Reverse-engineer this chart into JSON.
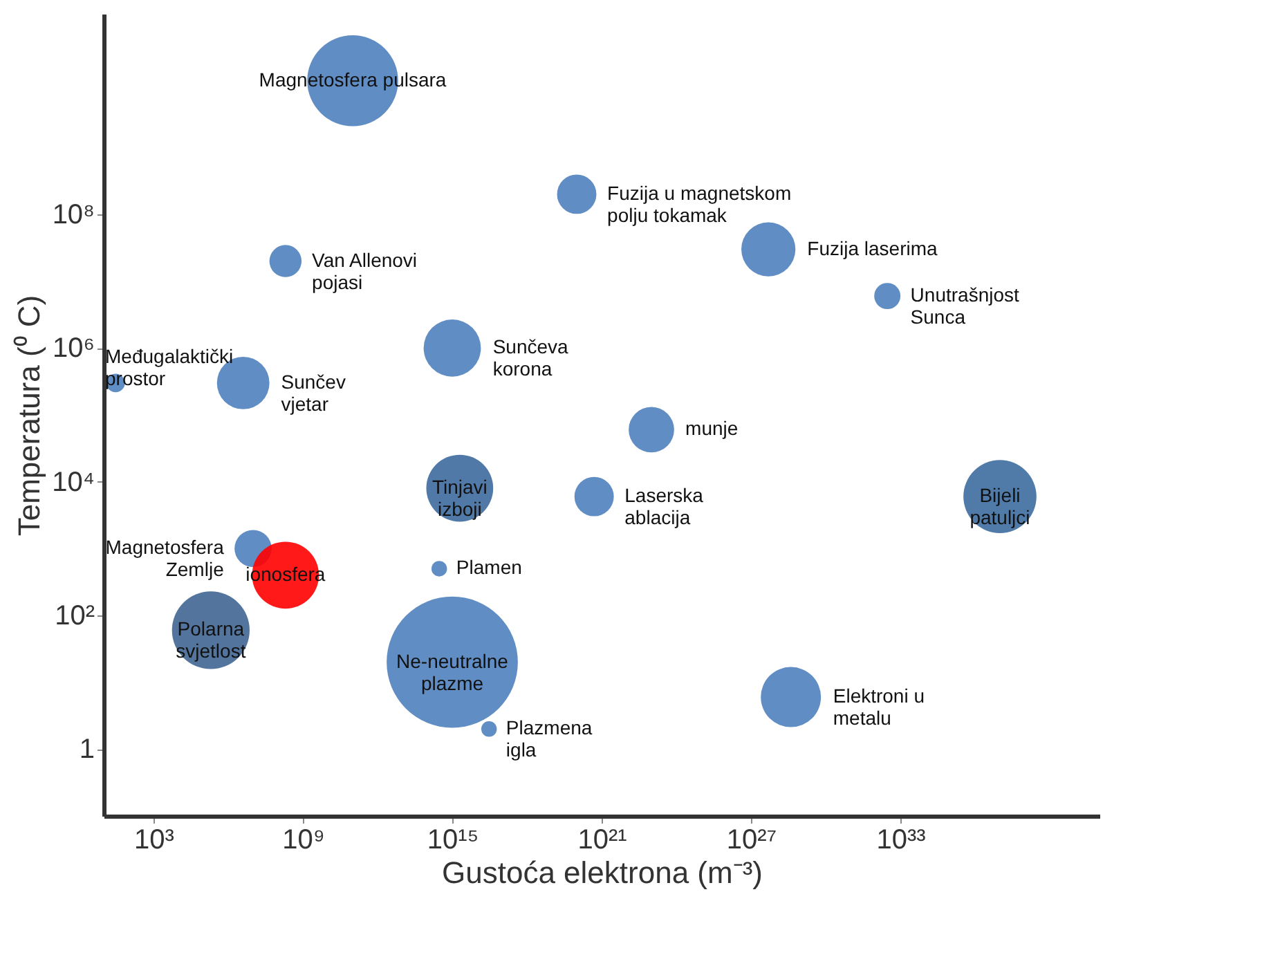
{
  "chart_data": {
    "type": "bubble",
    "xlabel": "Gustoća elektrona (m⁻³)",
    "ylabel": "Temperatura (⁰ C)",
    "x": [
      100000000000.0,
      1e+20,
      5e+27,
      200000000.0,
      3e+32,
      30.0,
      1000000000000000.0,
      4000000.0,
      1e+23,
      2000000000000000.0,
      5e+20,
      1e+37,
      10000000.0,
      200000000.0,
      300000000000000.0,
      200000.0,
      1000000000000000.0,
      3e+16,
      4e+28
    ],
    "values": [
      10000000000.0,
      200000000.0,
      30000000.0,
      20000000.0,
      6000000.0,
      300000.0,
      1000000.0,
      300000.0,
      60000.0,
      8000.0,
      6000.0,
      6000.0,
      1000.0,
      400.0,
      500.0,
      60.0,
      20.0,
      2,
      6
    ],
    "sizes": [
      0.48,
      0.09,
      0.17,
      0.06,
      0.04,
      0.02,
      0.19,
      0.16,
      0.12,
      0.26,
      0.09,
      0.31,
      0.08,
      0.26,
      0.014,
      0.35,
      1,
      0.014,
      0.21
    ],
    "colors": [
      "#4f81bd",
      "#4f81bd",
      "#4f81bd",
      "#4f81bd",
      "#4f81bd",
      "#4f81bd",
      "#4f81bd",
      "#4f81bd",
      "#4f81bd",
      "#3e6a9e",
      "#4f81bd",
      "#3d6b9f",
      "#4f81bd",
      "#ff0000",
      "#4f81bd",
      "#3f6592",
      "#4f81bd",
      "#4f81bd",
      "#4f81bd"
    ],
    "xlim": [
      10,
      1e+41
    ],
    "xticks": [
      {
        "value": 1000.0,
        "label": "10³"
      },
      {
        "value": 1000000000.0,
        "label": "10⁹"
      },
      {
        "value": 1000000000000000.0,
        "label": "10¹⁵"
      },
      {
        "value": 1e+21,
        "label": "10²¹"
      },
      {
        "value": 1e+27,
        "label": "10²⁷"
      },
      {
        "value": 1e+33,
        "label": "10³³"
      }
    ],
    "ylim": [
      0.1,
      100000000000.0
    ],
    "yticks": [
      1,
      {
        "value": 100.0,
        "label": "10²"
      },
      {
        "value": 10000.0,
        "label": "10⁴"
      },
      {
        "value": 1000000.0,
        "label": "10⁶"
      },
      {
        "value": 100000000.0,
        "label": "10⁸"
      }
    ],
    "log": "xy",
    "annotations": [
      {
        "text": "Magnetosfera pulsara",
        "x": 100000000000.0,
        "y": 10000000000.0
      },
      {
        "text": "Fuzija u magnetskom\npolju tokamak",
        "x": 1e+20,
        "y": 200000000.0
      },
      {
        "text": "Fuzija laserima",
        "x": 5e+27,
        "y": 30000000.0
      },
      {
        "text": "Van Allenovi\npojasi",
        "x": 200000000.0,
        "y": 20000000.0
      },
      {
        "text": "Unutrašnjost\nSunca",
        "x": 3e+32,
        "y": 6000000.0
      },
      {
        "text": "Međugalaktički\nprostor",
        "x": 30.0,
        "y": 300000.0
      },
      {
        "text": "Sunčeva\nkorona",
        "x": 1000000000000000.0,
        "y": 1000000.0
      },
      {
        "text": "Sunčev\nvjetar",
        "x": 4000000.0,
        "y": 300000.0
      },
      {
        "text": "munje",
        "x": 1e+23,
        "y": 60000.0
      },
      {
        "text": "Tinjavi\nizboji",
        "x": 2000000000000000.0,
        "y": 8000.0
      },
      {
        "text": "Laserska\nablacija",
        "x": 5e+20,
        "y": 6000.0
      },
      {
        "text": "Bijeli\npatuljci",
        "x": 1e+37,
        "y": 6000.0
      },
      {
        "text": "Magnetosfera\nZemlje",
        "x": 10000000.0,
        "y": 1000.0
      },
      {
        "text": "ionosfera",
        "x": 200000000.0,
        "y": 400.0
      },
      {
        "text": "Plamen",
        "x": 300000000000000.0,
        "y": 500.0
      },
      {
        "text": "Polarna\nsvjetlost",
        "x": 200000.0,
        "y": 60.0
      },
      {
        "text": "Ne-neutralne\nplazme",
        "x": 1000000000000000.0,
        "y": 20.0
      },
      {
        "text": "Plazmena\nigla",
        "x": 3e+16,
        "y": 2
      },
      {
        "text": "Elektroni u\nmetalu",
        "x": 4e+28,
        "y": 6
      }
    ]
  }
}
